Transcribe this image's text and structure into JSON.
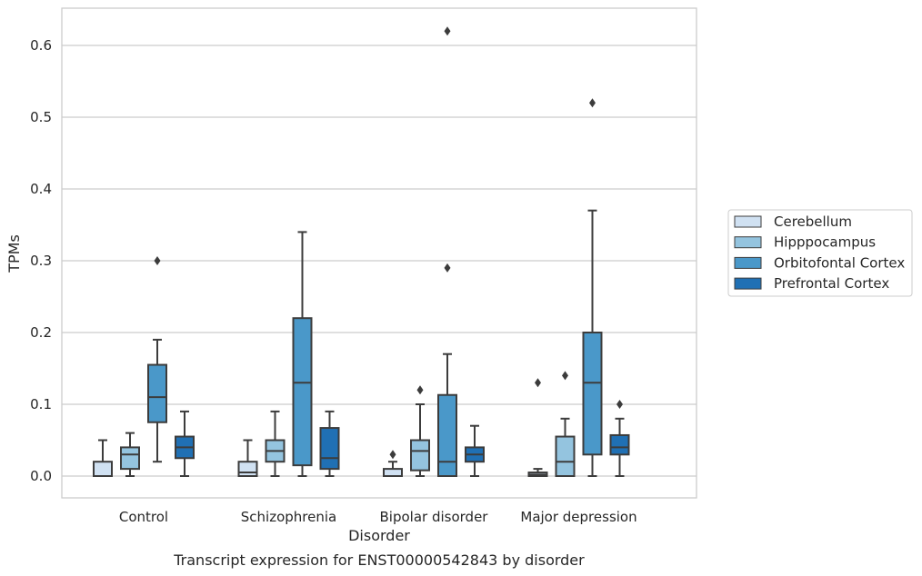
{
  "chart_data": {
    "type": "box",
    "xlabel": "Disorder",
    "ylabel": "TPMs",
    "caption": "Transcript expression for ENST00000542843 by disorder",
    "ylim": [
      -0.03,
      0.65
    ],
    "yticks": [
      "0.0",
      "0.1",
      "0.2",
      "0.3",
      "0.4",
      "0.5",
      "0.6"
    ],
    "grid": "horizontal",
    "legend_position": "right",
    "categories": [
      "Control",
      "Schizophrenia",
      "Bipolar disorder",
      "Major depression"
    ],
    "series": [
      {
        "name": "Cerebellum",
        "color": "#d0e1f2",
        "boxes": [
          {
            "whisker_low": 0.0,
            "q1": 0.0,
            "median": 0.0,
            "q3": 0.02,
            "whisker_high": 0.05,
            "outliers": []
          },
          {
            "whisker_low": 0.0,
            "q1": 0.0,
            "median": 0.005,
            "q3": 0.02,
            "whisker_high": 0.05,
            "outliers": []
          },
          {
            "whisker_low": 0.0,
            "q1": 0.0,
            "median": 0.0,
            "q3": 0.01,
            "whisker_high": 0.02,
            "outliers": [
              0.03
            ]
          },
          {
            "whisker_low": 0.0,
            "q1": 0.0,
            "median": 0.002,
            "q3": 0.005,
            "whisker_high": 0.01,
            "outliers": [
              0.13
            ]
          }
        ]
      },
      {
        "name": "Hipppocampus",
        "color": "#94c4df",
        "boxes": [
          {
            "whisker_low": 0.0,
            "q1": 0.01,
            "median": 0.03,
            "q3": 0.04,
            "whisker_high": 0.06,
            "outliers": []
          },
          {
            "whisker_low": 0.0,
            "q1": 0.02,
            "median": 0.035,
            "q3": 0.05,
            "whisker_high": 0.09,
            "outliers": []
          },
          {
            "whisker_low": 0.0,
            "q1": 0.008,
            "median": 0.035,
            "q3": 0.05,
            "whisker_high": 0.1,
            "outliers": [
              0.12
            ]
          },
          {
            "whisker_low": 0.0,
            "q1": 0.0,
            "median": 0.02,
            "q3": 0.055,
            "whisker_high": 0.08,
            "outliers": [
              0.14
            ]
          }
        ]
      },
      {
        "name": "Orbitofontal Cortex",
        "color": "#4a98c9",
        "boxes": [
          {
            "whisker_low": 0.02,
            "q1": 0.075,
            "median": 0.11,
            "q3": 0.155,
            "whisker_high": 0.19,
            "outliers": [
              0.3
            ]
          },
          {
            "whisker_low": 0.0,
            "q1": 0.015,
            "median": 0.13,
            "q3": 0.22,
            "whisker_high": 0.34,
            "outliers": []
          },
          {
            "whisker_low": 0.0,
            "q1": 0.0,
            "median": 0.02,
            "q3": 0.113,
            "whisker_high": 0.17,
            "outliers": [
              0.29,
              0.62
            ]
          },
          {
            "whisker_low": 0.0,
            "q1": 0.03,
            "median": 0.13,
            "q3": 0.2,
            "whisker_high": 0.37,
            "outliers": [
              0.52
            ]
          }
        ]
      },
      {
        "name": "Prefrontal Cortex",
        "color": "#2070b4",
        "boxes": [
          {
            "whisker_low": 0.0,
            "q1": 0.025,
            "median": 0.04,
            "q3": 0.055,
            "whisker_high": 0.09,
            "outliers": []
          },
          {
            "whisker_low": 0.0,
            "q1": 0.01,
            "median": 0.025,
            "q3": 0.067,
            "whisker_high": 0.09,
            "outliers": []
          },
          {
            "whisker_low": 0.0,
            "q1": 0.02,
            "median": 0.03,
            "q3": 0.04,
            "whisker_high": 0.07,
            "outliers": []
          },
          {
            "whisker_low": 0.0,
            "q1": 0.03,
            "median": 0.04,
            "q3": 0.057,
            "whisker_high": 0.08,
            "outliers": [
              0.1
            ]
          }
        ]
      }
    ]
  }
}
